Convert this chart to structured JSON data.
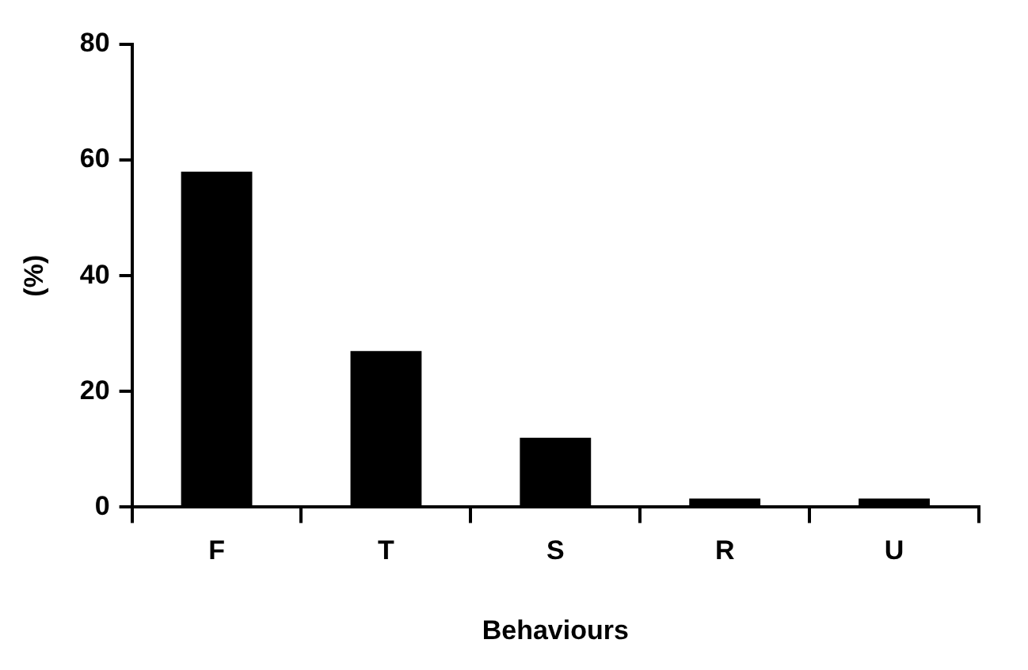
{
  "chart_data": {
    "type": "bar",
    "xlabel": "Behaviours",
    "ylabel": "(%)",
    "categories": [
      "F",
      "T",
      "S",
      "R",
      "U"
    ],
    "values": [
      58,
      27,
      12,
      1.5,
      1.5
    ],
    "color": "#000000",
    "ylim": [
      0,
      80
    ],
    "yticks": [
      0,
      20,
      40,
      60,
      80
    ],
    "grid": false,
    "legend": false
  }
}
